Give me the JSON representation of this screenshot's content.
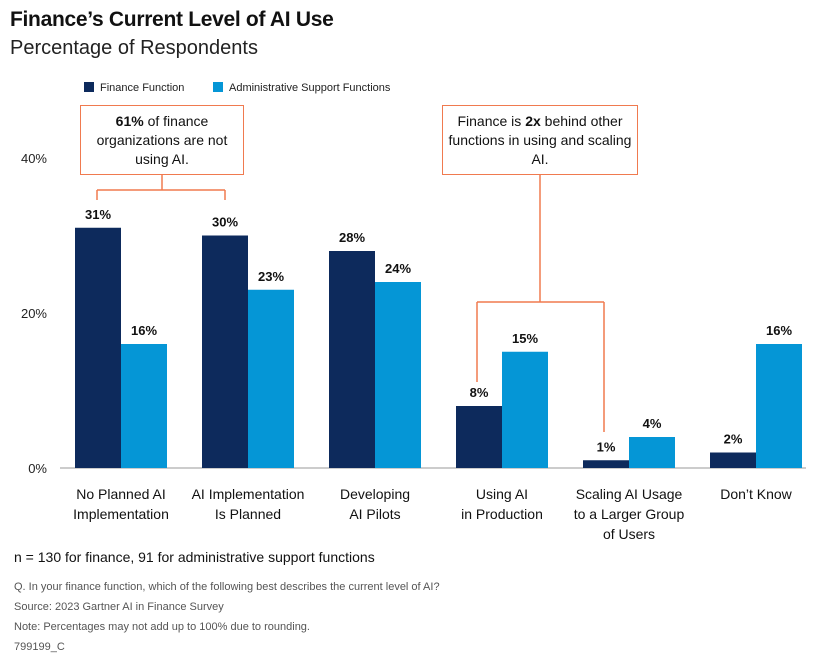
{
  "title": "Finance’s Current Level of AI Use",
  "subtitle": "Percentage of Respondents",
  "callouts": [
    {
      "pre": "",
      "bold": "61%",
      "post": " of finance organizations are not using AI."
    },
    {
      "pre": "Finance is ",
      "bold": "2x",
      "post": " behind other functions in using and scaling AI."
    }
  ],
  "sample_note": "n = 130 for finance, 91 for administrative support functions",
  "footnotes": {
    "question": "Q. In your finance function, which of the following best describes the current level of AI?",
    "source": "Source: 2023 Gartner AI in Finance Survey",
    "note": "Note: Percentages may not add up to 100% due to rounding.",
    "id": "799199_C"
  },
  "chart_data": {
    "type": "bar",
    "title": "Finance’s Current Level of AI Use",
    "subtitle": "Percentage of Respondents",
    "categories": [
      [
        "No Planned AI",
        "Implementation"
      ],
      [
        "AI Implementation",
        "Is Planned"
      ],
      [
        "Developing",
        "AI Pilots"
      ],
      [
        "Using AI",
        "in Production"
      ],
      [
        "Scaling AI Usage",
        "to a Larger Group",
        "of Users"
      ],
      [
        "Don’t Know"
      ]
    ],
    "series": [
      {
        "name": "Finance Function",
        "color": "#0d2a5c",
        "values": [
          31,
          30,
          28,
          8,
          1,
          2
        ],
        "labels": [
          "31%",
          "30%",
          "28%",
          "8%",
          "1%",
          "2%"
        ]
      },
      {
        "name": "Administrative Support Functions",
        "color": "#0596d6",
        "values": [
          16,
          23,
          24,
          15,
          4,
          16
        ],
        "labels": [
          "16%",
          "23%",
          "24%",
          "15%",
          "4%",
          "16%"
        ]
      }
    ],
    "yticks": [
      0,
      20,
      40
    ],
    "ytick_labels": [
      "0%",
      "20%",
      "40%"
    ],
    "ylim": [
      0,
      40
    ],
    "legend_position": "top-left",
    "grid": false
  }
}
